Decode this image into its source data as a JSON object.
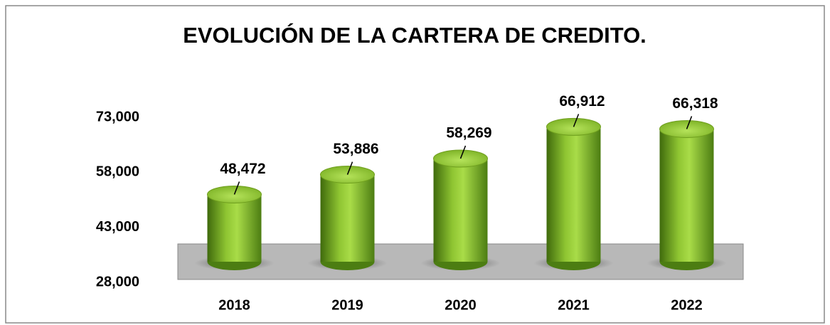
{
  "chart_data": {
    "type": "bar",
    "title": "EVOLUCIÓN DE LA CARTERA DE CREDITO.",
    "categories": [
      "2018",
      "2019",
      "2020",
      "2021",
      "2022"
    ],
    "values": [
      48472,
      53886,
      58269,
      66912,
      66318
    ],
    "value_labels": [
      "48,472",
      "53,886",
      "58,269",
      "66,912",
      "66,318"
    ],
    "color": "#7db324",
    "ylim": [
      28000,
      73000
    ],
    "yticks": [
      {
        "value": 28000,
        "label": "28,000"
      },
      {
        "value": 43000,
        "label": "43,000"
      },
      {
        "value": 58000,
        "label": "58,000"
      },
      {
        "value": 73000,
        "label": "73,000"
      }
    ]
  }
}
